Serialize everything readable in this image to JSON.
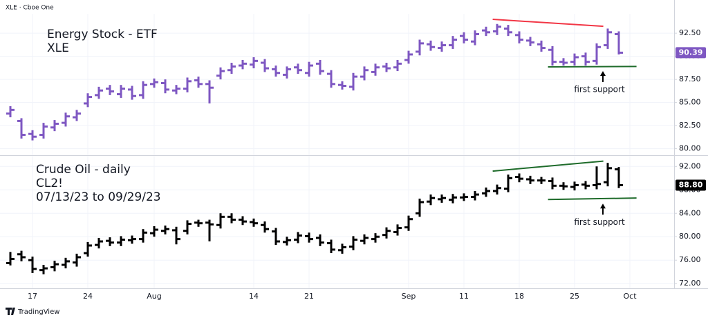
{
  "header": "XLE · Cboe One",
  "footer": "TradingView",
  "chart_data": [
    {
      "type": "ohlc",
      "title": "Energy Stock - ETF",
      "subtitle": "XLE",
      "series": [
        {
          "name": "XLE",
          "color": "#7e57c2",
          "open": [
            83.8,
            83.0,
            81.6,
            81.5,
            82.3,
            82.8,
            83.4,
            84.9,
            85.8,
            86.5,
            85.9,
            86.4,
            85.8,
            87.0,
            87.1,
            86.3,
            86.5,
            87.4,
            87.0,
            87.9,
            88.5,
            89.0,
            89.1,
            89.3,
            88.6,
            88.0,
            88.8,
            88.2,
            89.2,
            88.1,
            86.9,
            86.7,
            87.8,
            88.3,
            88.9,
            88.8,
            89.6,
            90.5,
            91.3,
            90.9,
            91.2,
            92.2,
            91.6,
            92.8,
            92.7,
            93.0,
            92.3,
            91.7,
            91.3,
            90.7,
            89.4,
            89.4,
            90.0,
            89.5,
            91.2,
            92.4,
            null
          ],
          "high": [
            84.6,
            83.3,
            82.0,
            82.8,
            83.1,
            83.9,
            84.2,
            86.0,
            86.7,
            86.9,
            86.9,
            86.8,
            87.3,
            87.6,
            87.5,
            86.9,
            87.7,
            87.8,
            87.4,
            88.8,
            89.3,
            89.6,
            89.9,
            89.7,
            89.0,
            88.9,
            89.2,
            89.4,
            89.6,
            88.5,
            87.3,
            88.2,
            88.9,
            89.2,
            89.3,
            89.6,
            90.6,
            91.8,
            91.7,
            91.6,
            92.2,
            92.6,
            92.8,
            93.2,
            93.5,
            93.4,
            92.7,
            92.1,
            91.7,
            91.1,
            89.8,
            90.3,
            90.4,
            91.4,
            93.0,
            92.7,
            null
          ],
          "low": [
            83.4,
            81.1,
            80.9,
            81.1,
            81.9,
            82.4,
            83.0,
            84.5,
            85.4,
            85.8,
            85.5,
            85.3,
            85.4,
            86.6,
            86.0,
            85.9,
            86.1,
            86.6,
            84.9,
            87.5,
            88.1,
            88.6,
            88.7,
            88.3,
            87.8,
            87.6,
            88.1,
            87.8,
            88.0,
            86.6,
            86.4,
            86.3,
            87.4,
            87.9,
            88.3,
            88.4,
            89.2,
            90.1,
            90.6,
            90.5,
            90.8,
            91.4,
            91.2,
            92.2,
            92.3,
            92.2,
            91.4,
            91.1,
            90.5,
            89.0,
            89.0,
            89.0,
            89.0,
            89.1,
            90.8,
            90.2,
            null
          ],
          "close": [
            84.2,
            81.5,
            81.3,
            82.4,
            82.7,
            83.5,
            83.8,
            85.6,
            86.3,
            86.2,
            86.5,
            85.7,
            86.9,
            87.2,
            86.4,
            86.5,
            87.3,
            87.0,
            86.6,
            88.4,
            88.9,
            89.2,
            89.5,
            88.7,
            88.2,
            88.6,
            88.5,
            89.0,
            88.4,
            87.0,
            86.8,
            87.8,
            88.5,
            88.8,
            88.7,
            89.2,
            90.2,
            91.4,
            91.0,
            91.2,
            91.8,
            91.8,
            92.4,
            92.6,
            93.2,
            92.6,
            91.8,
            91.5,
            90.9,
            89.4,
            89.3,
            89.9,
            89.4,
            91.0,
            92.6,
            90.39,
            null
          ]
        }
      ],
      "last_price": {
        "value": 90.39,
        "label": "90.39"
      },
      "ylim": [
        79.3,
        94.6
      ],
      "yticks": [
        {
          "value": 80,
          "label": "80.00"
        },
        {
          "value": 82.5,
          "label": "82.50"
        },
        {
          "value": 85,
          "label": "85.00"
        },
        {
          "value": 87.5,
          "label": "87.50"
        },
        {
          "value": 90,
          "label": "90.00"
        },
        {
          "value": 92.5,
          "label": "92.50"
        }
      ],
      "grid": true,
      "trendlines": [
        {
          "color": "#f23645",
          "x": [
            43.6,
            53.6
          ],
          "y": [
            94.0,
            93.25
          ]
        },
        {
          "color": "#1e6b2a",
          "x": [
            48.6,
            56.6
          ],
          "y": [
            88.85,
            88.9
          ]
        }
      ],
      "annotation": "first support"
    },
    {
      "type": "ohlc",
      "title": "Crude Oil - daily",
      "subtitle": "CL2!",
      "date_range": "07/13/23 to 09/29/23",
      "categories": [
        null,
        null,
        "17",
        null,
        null,
        null,
        null,
        "24",
        null,
        null,
        null,
        null,
        null,
        "Aug",
        null,
        null,
        null,
        null,
        null,
        null,
        null,
        null,
        "14",
        null,
        null,
        null,
        null,
        "21",
        null,
        null,
        null,
        null,
        null,
        null,
        null,
        null,
        "Sep",
        null,
        null,
        null,
        null,
        "11",
        null,
        null,
        null,
        null,
        "18",
        null,
        null,
        null,
        null,
        "25",
        null,
        null,
        null,
        null,
        "Oct"
      ],
      "series": [
        {
          "name": "CL2!",
          "color": "#000000",
          "open": [
            75.5,
            77.0,
            76.0,
            74.3,
            74.8,
            75.2,
            75.6,
            77.2,
            78.6,
            79.3,
            79.0,
            79.4,
            79.6,
            80.6,
            81.0,
            81.1,
            81.0,
            82.4,
            82.4,
            82.0,
            83.4,
            82.9,
            82.5,
            82.0,
            80.9,
            79.1,
            79.5,
            80.1,
            79.8,
            78.9,
            77.7,
            78.3,
            79.3,
            79.6,
            80.3,
            80.8,
            81.6,
            84.0,
            86.0,
            86.4,
            86.3,
            86.7,
            86.8,
            87.4,
            87.8,
            88.2,
            90.2,
            89.8,
            89.6,
            89.5,
            88.7,
            88.5,
            88.9,
            88.8,
            89.3,
            91.5,
            null
          ],
          "high": [
            77.4,
            77.6,
            76.6,
            75.2,
            75.9,
            76.4,
            77.1,
            79.1,
            79.8,
            79.9,
            80.1,
            80.2,
            81.3,
            81.8,
            81.9,
            81.7,
            82.8,
            82.9,
            82.9,
            84.0,
            84.0,
            83.5,
            83.1,
            82.6,
            81.5,
            80.0,
            80.8,
            80.7,
            80.4,
            79.5,
            78.8,
            80.1,
            80.4,
            80.6,
            81.6,
            82.1,
            83.6,
            86.5,
            87.2,
            87.2,
            87.3,
            87.4,
            87.8,
            88.4,
            88.9,
            90.6,
            90.8,
            90.4,
            90.2,
            90.1,
            89.3,
            89.4,
            89.5,
            92.0,
            92.6,
            91.9,
            null
          ],
          "low": [
            75.1,
            75.8,
            73.8,
            73.6,
            74.1,
            74.6,
            74.9,
            76.6,
            78.0,
            78.4,
            78.4,
            78.8,
            79.0,
            80.0,
            80.4,
            78.7,
            80.4,
            81.7,
            79.2,
            81.4,
            82.3,
            82.0,
            81.7,
            80.7,
            78.6,
            78.5,
            78.9,
            79.0,
            78.4,
            77.2,
            77.1,
            77.7,
            78.7,
            79.0,
            79.7,
            80.2,
            81.0,
            83.4,
            85.4,
            85.8,
            85.7,
            86.1,
            86.2,
            86.8,
            87.2,
            87.6,
            89.3,
            89.0,
            89.0,
            88.1,
            88.0,
            87.9,
            88.1,
            88.1,
            88.6,
            88.3,
            null
          ],
          "close": [
            76.2,
            76.5,
            74.5,
            74.6,
            75.3,
            75.8,
            76.5,
            78.5,
            79.2,
            79.0,
            79.5,
            79.6,
            80.7,
            81.2,
            81.3,
            79.6,
            82.2,
            82.3,
            82.1,
            83.4,
            82.9,
            82.6,
            82.3,
            81.3,
            79.2,
            79.4,
            80.2,
            79.6,
            79.0,
            77.8,
            78.2,
            79.5,
            79.8,
            80.0,
            81.0,
            81.5,
            83.0,
            85.9,
            86.6,
            86.6,
            86.7,
            86.8,
            87.2,
            87.8,
            88.3,
            90.0,
            89.9,
            89.6,
            89.6,
            88.7,
            88.6,
            88.8,
            88.7,
            89.0,
            91.7,
            88.8,
            null
          ]
        }
      ],
      "last_price": {
        "value": 88.8,
        "label": "88.80"
      },
      "ylim": [
        71.2,
        93.8
      ],
      "yticks": [
        {
          "value": 72,
          "label": "72.00"
        },
        {
          "value": 76,
          "label": "76.00"
        },
        {
          "value": 80,
          "label": "80.00"
        },
        {
          "value": 84,
          "label": "84.00"
        },
        {
          "value": 88,
          "label": "88.00"
        },
        {
          "value": 92,
          "label": "92.00"
        }
      ],
      "grid": true,
      "trendlines": [
        {
          "color": "#1e6b2a",
          "x": [
            43.6,
            53.6
          ],
          "y": [
            91.2,
            92.9
          ]
        },
        {
          "color": "#1e6b2a",
          "x": [
            48.6,
            56.6
          ],
          "y": [
            86.35,
            86.6
          ]
        }
      ],
      "annotation": "first support"
    }
  ]
}
